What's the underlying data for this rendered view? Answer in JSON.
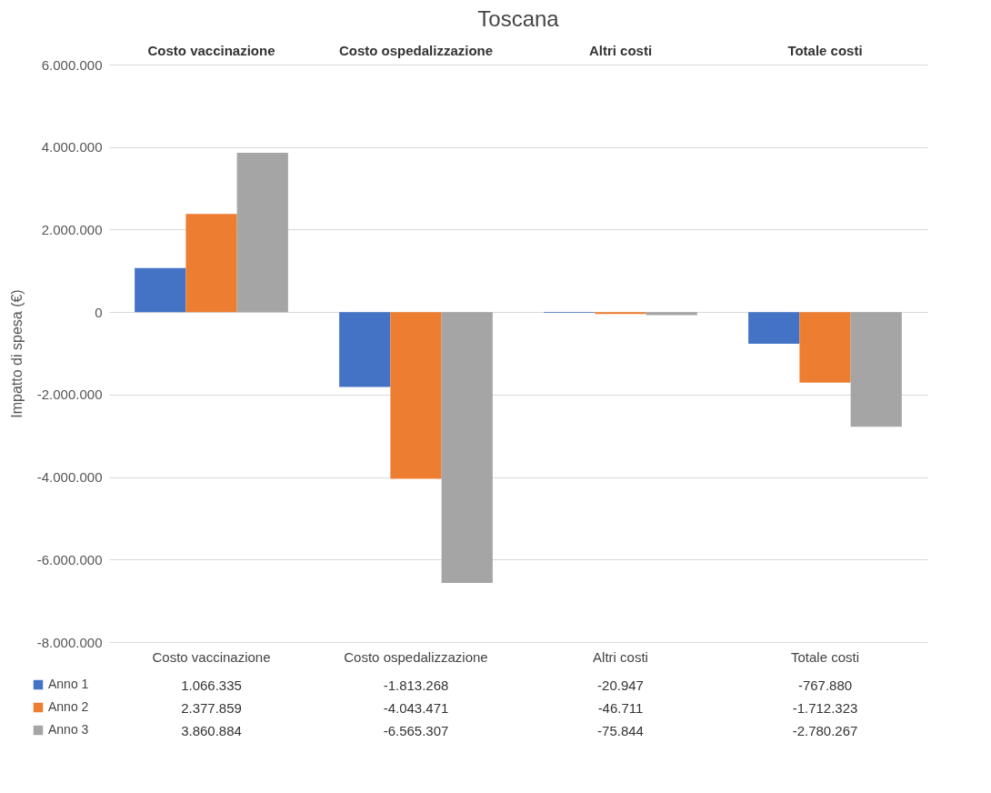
{
  "chart_data": {
    "type": "bar",
    "title": "Toscana",
    "ylabel": "Impatto di spesa (€)",
    "categories": [
      "Costo vaccinazione",
      "Costo ospedalizzazione",
      "Altri costi",
      "Totale costi"
    ],
    "series": [
      {
        "name": "Anno 1",
        "color": "#4472c4",
        "values": [
          1066335,
          -1813268,
          -20947,
          -767880
        ],
        "value_labels": [
          "1.066.335",
          "-1.813.268",
          "-20.947",
          "-767.880"
        ]
      },
      {
        "name": "Anno 2",
        "color": "#ed7d31",
        "values": [
          2377859,
          -4043471,
          -46711,
          -1712323
        ],
        "value_labels": [
          "2.377.859",
          "-4.043.471",
          "-46.711",
          "-1.712.323"
        ]
      },
      {
        "name": "Anno 3",
        "color": "#a5a5a5",
        "values": [
          3860884,
          -6565307,
          -75844,
          -2780267
        ],
        "value_labels": [
          "3.860.884",
          "-6.565.307",
          "-75.844",
          "-2.780.267"
        ]
      }
    ],
    "ylim": [
      -8000000,
      6000000
    ],
    "yticks": [
      {
        "value": -8000000,
        "label": "-8.000.000"
      },
      {
        "value": -6000000,
        "label": "-6.000.000"
      },
      {
        "value": -4000000,
        "label": "-4.000.000"
      },
      {
        "value": -2000000,
        "label": "-2.000.000"
      },
      {
        "value": 0,
        "label": "0"
      },
      {
        "value": 2000000,
        "label": "2.000.000"
      },
      {
        "value": 4000000,
        "label": "4.000.000"
      },
      {
        "value": 6000000,
        "label": "6.000.000"
      }
    ],
    "grid": "y",
    "legend": "bottom left"
  }
}
